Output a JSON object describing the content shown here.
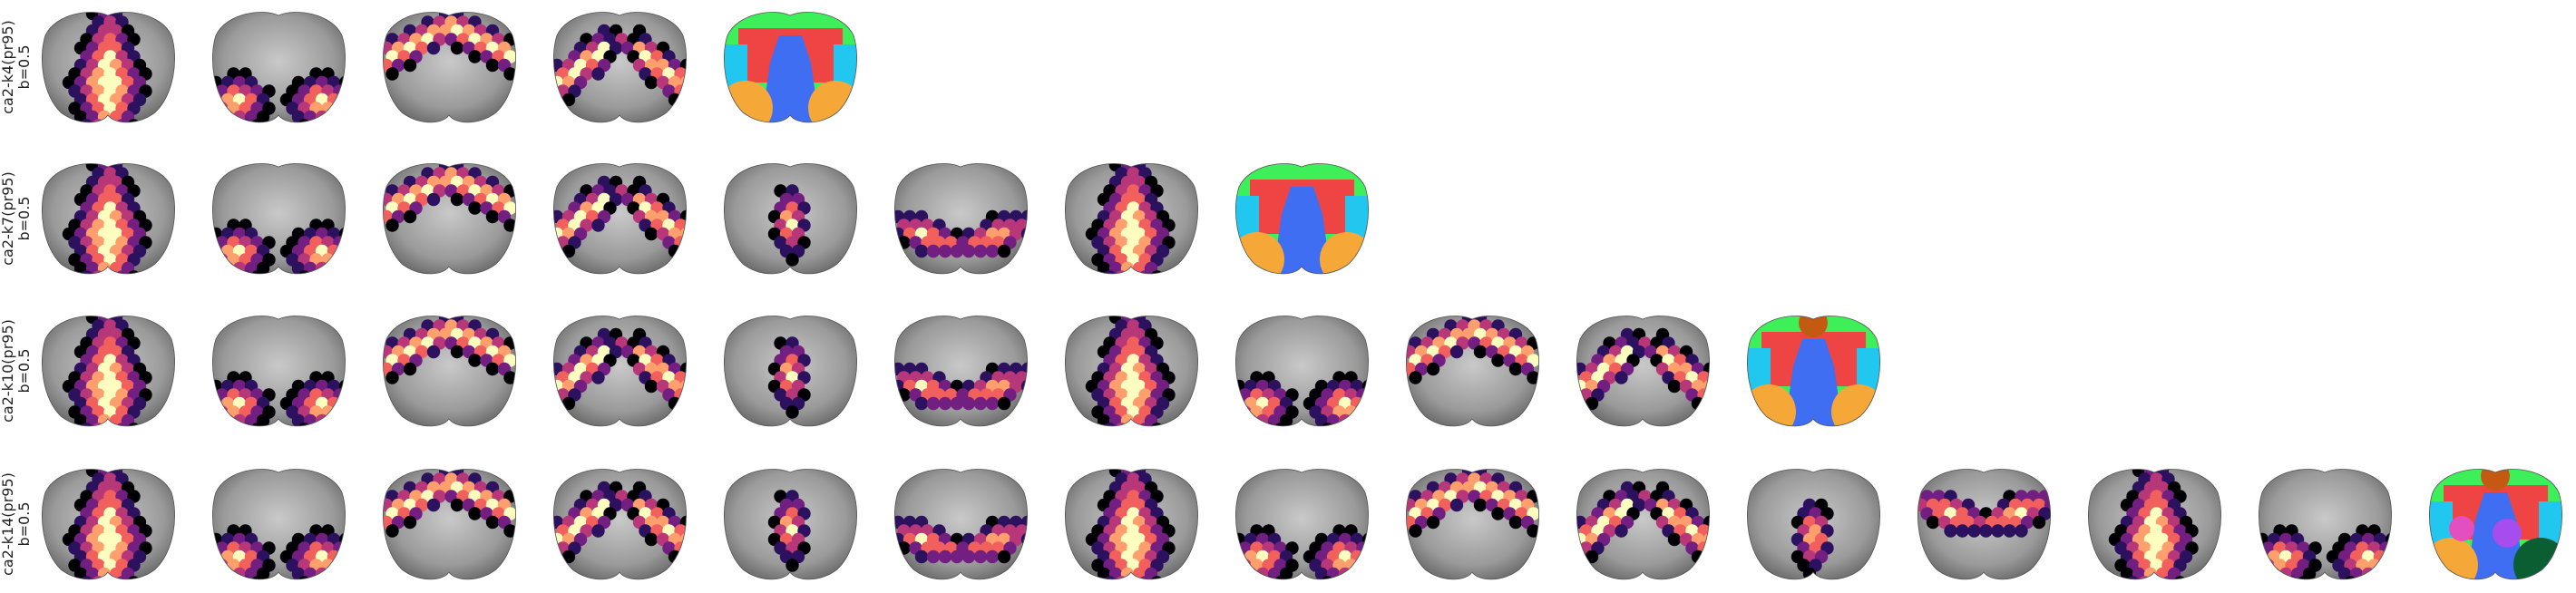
{
  "rows": [
    {
      "label": "ca2-k4(pr95)",
      "sublabel": "b=0.5"
    },
    {
      "label": "ca2-k7(pr95)",
      "sublabel": "b=0.5"
    },
    {
      "label": "ca2-k10(pr95)",
      "sublabel": "b=0.5"
    },
    {
      "label": "ca2-k14(pr95)",
      "sublabel": "b=0.5"
    }
  ]
}
